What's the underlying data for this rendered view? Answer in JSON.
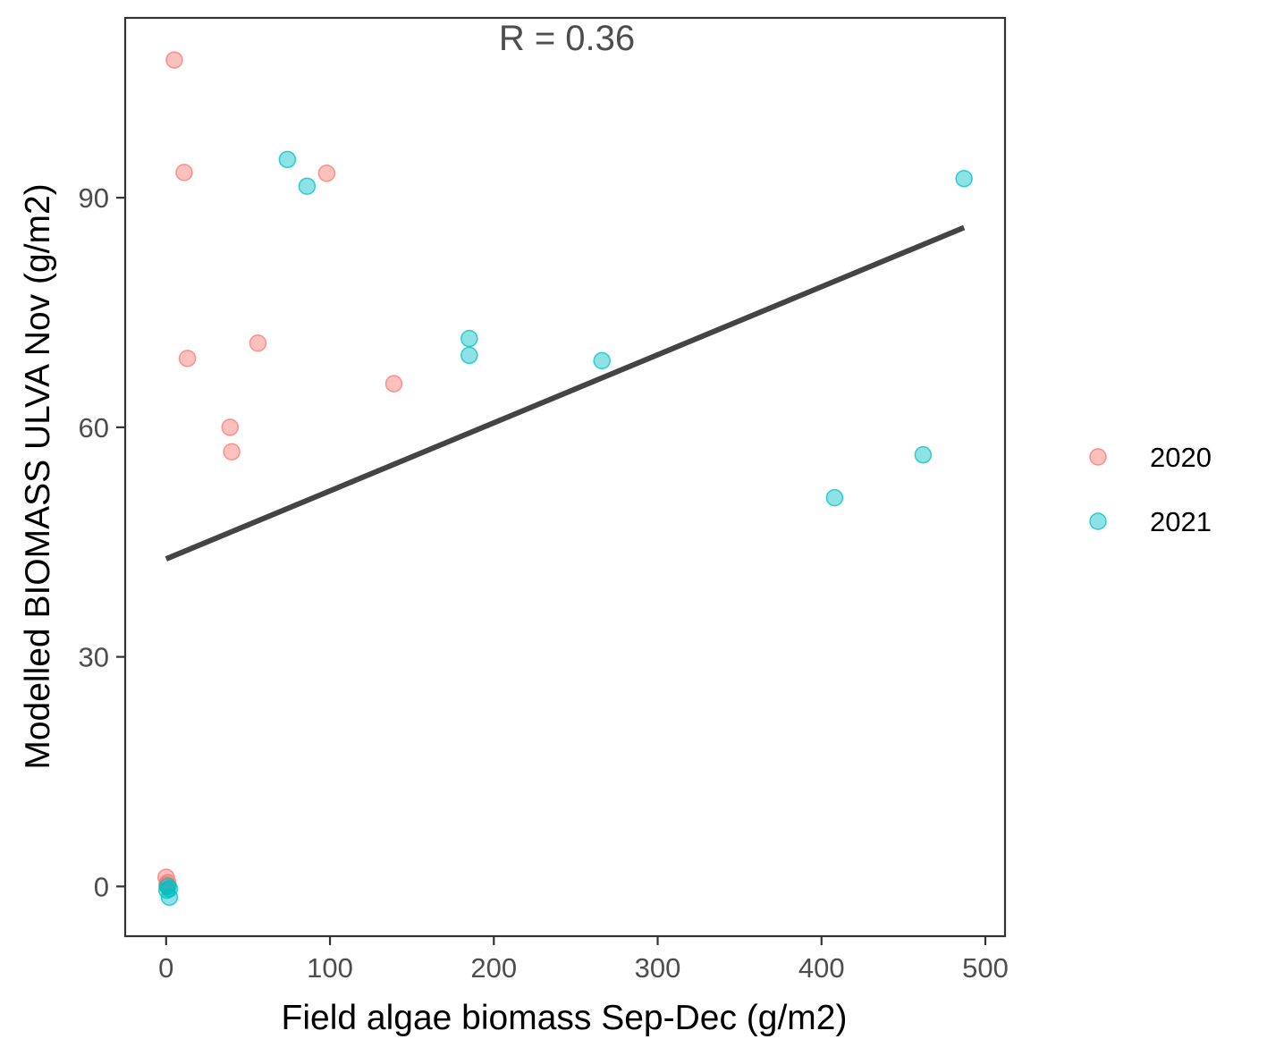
{
  "chart_data": {
    "type": "scatter",
    "title": "",
    "xlabel": "Field algae biomass Sep-Dec (g/m2)",
    "ylabel": "Modelled BIOMASS ULVA Nov (g/m2)",
    "xlim": [
      -25,
      512
    ],
    "ylim": [
      -6.5,
      113.5
    ],
    "xticks": [
      0,
      100,
      200,
      300,
      400,
      500
    ],
    "yticks": [
      0,
      30,
      60,
      90
    ],
    "grid": false,
    "legend_position": "right",
    "annotation": "R = 0.36",
    "series": [
      {
        "name": "2020",
        "color": "#F8766D",
        "points": [
          {
            "x": 5,
            "y": 108
          },
          {
            "x": 11,
            "y": 93.3
          },
          {
            "x": 98,
            "y": 93.2
          },
          {
            "x": 56,
            "y": 71
          },
          {
            "x": 13,
            "y": 69
          },
          {
            "x": 139,
            "y": 65.7
          },
          {
            "x": 39,
            "y": 60
          },
          {
            "x": 40,
            "y": 56.8
          },
          {
            "x": 0,
            "y": 1.2
          },
          {
            "x": 1,
            "y": 0.5
          },
          {
            "x": 0.5,
            "y": 0.2
          }
        ]
      },
      {
        "name": "2021",
        "color": "#00BFC4",
        "points": [
          {
            "x": 74,
            "y": 95
          },
          {
            "x": 86,
            "y": 91.5
          },
          {
            "x": 487,
            "y": 92.5
          },
          {
            "x": 185,
            "y": 71.6
          },
          {
            "x": 185,
            "y": 69.4
          },
          {
            "x": 266,
            "y": 68.7
          },
          {
            "x": 462,
            "y": 56.4
          },
          {
            "x": 408,
            "y": 50.8
          },
          {
            "x": 1,
            "y": 0
          },
          {
            "x": 2,
            "y": -0.3
          },
          {
            "x": 0.5,
            "y": -0.5
          },
          {
            "x": 2,
            "y": -1.4
          }
        ]
      }
    ],
    "regression_line": {
      "color": "#444444",
      "from": {
        "x": 0,
        "y": 42.8
      },
      "to": {
        "x": 487,
        "y": 86.1
      }
    }
  }
}
